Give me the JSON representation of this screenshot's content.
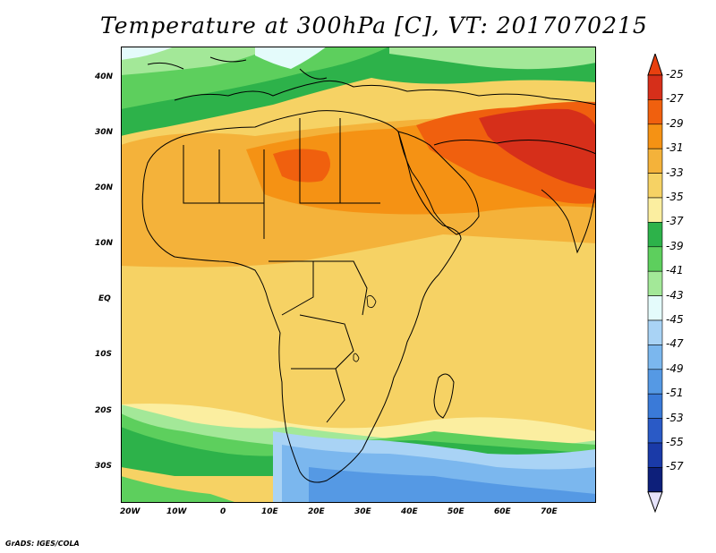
{
  "title": "Temperature at 300hPa [C], VT: 2017070215",
  "credit": "GrADS: IGES/COLA",
  "lat_labels": [
    "40N",
    "30N",
    "20N",
    "10N",
    "EQ",
    "10S",
    "20S",
    "30S"
  ],
  "lon_labels": [
    "20W",
    "10W",
    "0",
    "10E",
    "20E",
    "30E",
    "40E",
    "50E",
    "60E",
    "70E"
  ],
  "colorbar": {
    "labels": [
      "-25",
      "-27",
      "-29",
      "-31",
      "-33",
      "-35",
      "-37",
      "-39",
      "-41",
      "-43",
      "-45",
      "-47",
      "-49",
      "-51",
      "-53",
      "-55",
      "-57"
    ],
    "colors": [
      "#d62f1a",
      "#f0600e",
      "#f59214",
      "#f4b23a",
      "#f6d264",
      "#fbeea0",
      "#2db24a",
      "#5dcf5d",
      "#a3e898",
      "#e4fbfb",
      "#a9d3f5",
      "#7bb7ee",
      "#5599e4",
      "#3a7ad8",
      "#2a5ac6",
      "#1a3aa8",
      "#0d1f7a"
    ]
  }
}
